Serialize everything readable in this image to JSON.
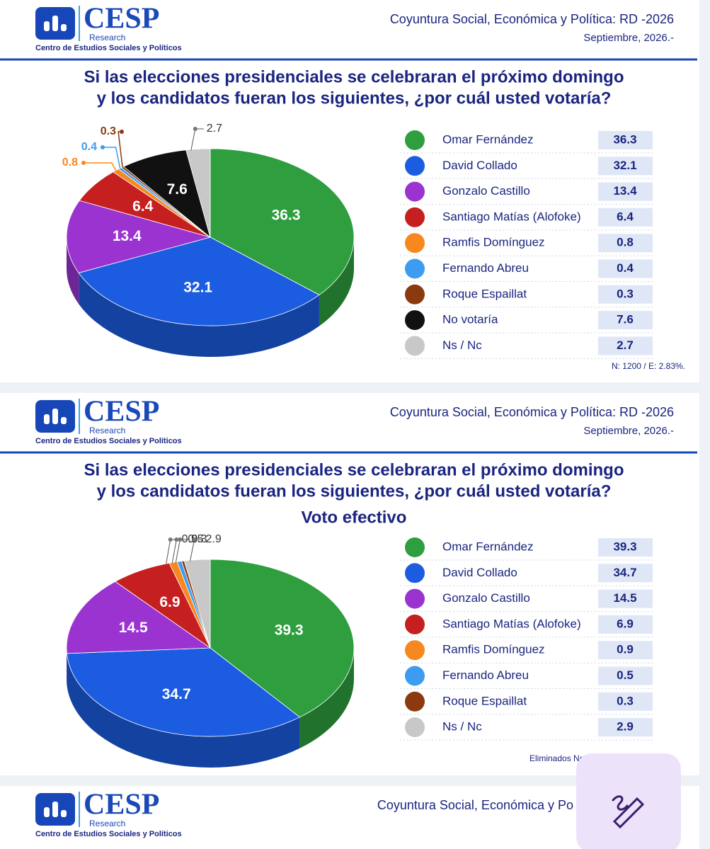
{
  "headers": [
    {
      "brand": "CESP",
      "sub": "Research",
      "org": "Centro de Estudios Sociales y Políticos",
      "report": "Coyuntura Social, Económica y Política: RD -2026",
      "date": "Septiembre, 2026.-"
    },
    {
      "brand": "CESP",
      "sub": "Research",
      "org": "Centro de Estudios Sociales y Políticos",
      "report": "Coyuntura Social, Económica y Política: RD -2026",
      "date": "Septiembre, 2026.-"
    },
    {
      "brand": "CESP",
      "sub": "Research",
      "org": "Centro de Estudios Sociales y Políticos",
      "report": "Coyuntura Social, Económica y Po"
    }
  ],
  "chart_data": [
    {
      "type": "pie",
      "title": [
        "Si las elecciones presidenciales se celebraran el próximo domingo",
        "y los candidatos fueran los siguientes, ¿por cuál usted votaría?"
      ],
      "categories": [
        "Omar Fernández",
        "David Collado",
        "Gonzalo Castillo",
        "Santiago Matías (Alofoke)",
        "Ramfis Domínguez",
        "Fernando Abreu",
        "Roque Espaillat",
        "No votaría",
        "Ns / Nc"
      ],
      "values": [
        36.3,
        32.1,
        13.4,
        6.4,
        0.8,
        0.4,
        0.3,
        7.6,
        2.7
      ],
      "colors": [
        "#2e9e3e",
        "#1c5ce0",
        "#9a33d0",
        "#c61f1f",
        "#f7871f",
        "#3d9cf0",
        "#8b3a10",
        "#111111",
        "#c8c8c8"
      ],
      "note": "N: 1200 / E: 2.83%."
    },
    {
      "type": "pie",
      "title": [
        "Si las elecciones presidenciales se celebraran el próximo domingo",
        "y los candidatos fueran los siguientes, ¿por cuál usted votaría?"
      ],
      "subtitle": "Voto efectivo",
      "categories": [
        "Omar Fernández",
        "David Collado",
        "Gonzalo Castillo",
        "Santiago Matías (Alofoke)",
        "Ramfis Domínguez",
        "Fernando Abreu",
        "Roque Espaillat",
        "Ns / Nc"
      ],
      "values": [
        39.3,
        34.7,
        14.5,
        6.9,
        0.9,
        0.5,
        0.3,
        2.9
      ],
      "colors": [
        "#2e9e3e",
        "#1c5ce0",
        "#9a33d0",
        "#c61f1f",
        "#f7871f",
        "#3d9cf0",
        "#8b3a10",
        "#c8c8c8"
      ],
      "note": "Eliminados No"
    }
  ]
}
